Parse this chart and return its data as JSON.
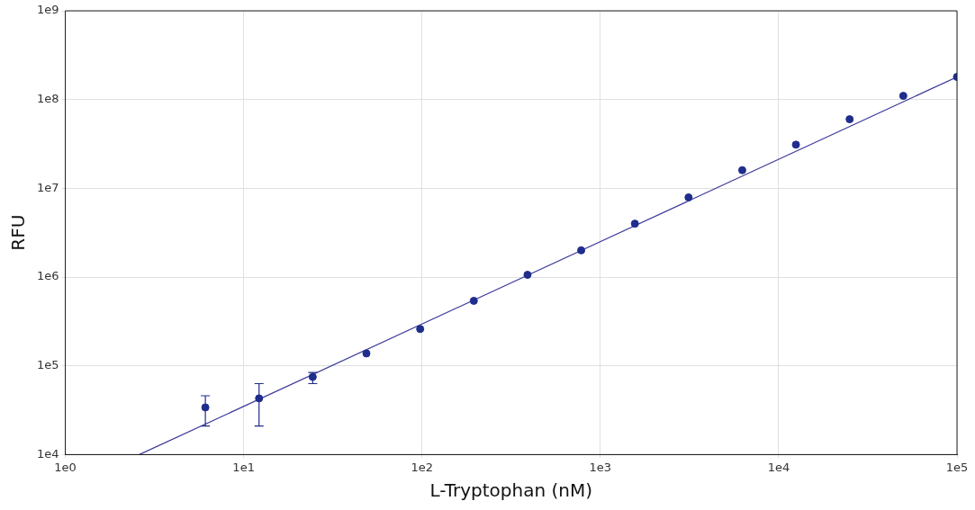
{
  "chart_data": {
    "type": "scatter",
    "xlabel": "L-Tryptophan (nM)",
    "ylabel": "RFU",
    "log": "xy",
    "grid": true,
    "legend": false,
    "marker": "circle",
    "xlim": [
      1,
      100000
    ],
    "ylim": [
      10000,
      1000000000
    ],
    "xticks": [
      {
        "value": 1,
        "label": "1e0"
      },
      {
        "value": 10,
        "label": "1e1"
      },
      {
        "value": 100,
        "label": "1e2"
      },
      {
        "value": 1000,
        "label": "1e3"
      },
      {
        "value": 10000,
        "label": "1e4"
      },
      {
        "value": 100000,
        "label": "1e5"
      }
    ],
    "yticks": [
      {
        "value": 10000,
        "label": "1e4"
      },
      {
        "value": 100000,
        "label": "1e5"
      },
      {
        "value": 1000000,
        "label": "1e6"
      },
      {
        "value": 10000000,
        "label": "1e7"
      },
      {
        "value": 100000000,
        "label": "1e8"
      },
      {
        "value": 1000000000,
        "label": "1e9"
      }
    ],
    "series": [
      {
        "color": "#1f2d8c",
        "x": [
          6.1,
          12.2,
          24.4,
          48.8,
          97.7,
          195.3,
          390.6,
          781.3,
          1562.5,
          3125,
          6250,
          12500,
          25000,
          50000,
          100000
        ],
        "values": [
          34000,
          43000,
          75000,
          138000,
          260000,
          540000,
          1060000,
          2000000,
          4000000,
          7900000,
          16000000,
          31000000,
          60000000,
          110000000,
          180000000
        ],
        "errors": [
          [
            21000,
            46000
          ],
          [
            21000,
            63000
          ],
          [
            63000,
            84000
          ],
          null,
          null,
          null,
          null,
          null,
          null,
          null,
          null,
          null,
          null,
          null,
          null
        ]
      },
      {
        "type": "line",
        "color": "#3c3c9c",
        "marker": "none",
        "x": [
          2.6,
          100000
        ],
        "values": [
          10000,
          180000000
        ]
      }
    ]
  }
}
